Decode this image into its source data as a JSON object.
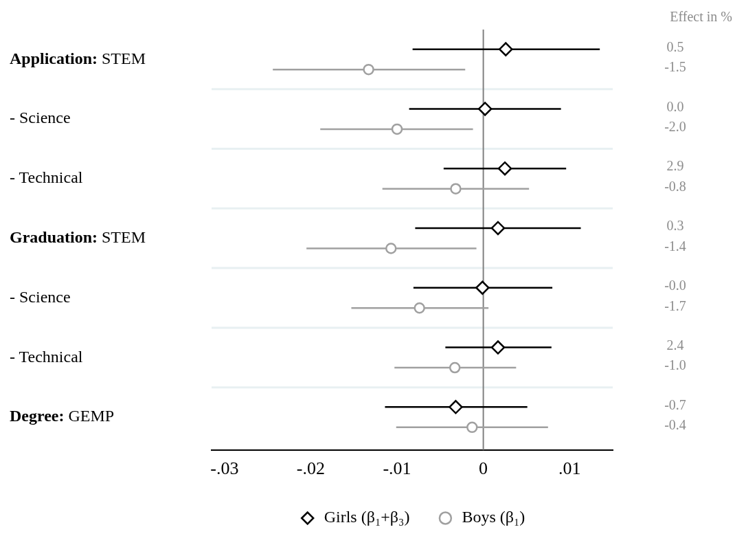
{
  "chart_data": {
    "type": "scatter",
    "orientation": "horizontal",
    "categories": [
      "Application: STEM",
      "- Science",
      "- Technical",
      "Graduation: STEM",
      "- Science",
      "- Technical",
      "Degree: GEMP"
    ],
    "series": [
      {
        "name": "Girls (β₁+β₃)",
        "color": "#000000",
        "marker": "diamond",
        "values": [
          0.0026,
          0.0002,
          0.0025,
          0.0017,
          -0.0001,
          0.0017,
          -0.0032
        ],
        "errors": [
          [
            -0.0082,
            0.0135
          ],
          [
            -0.0086,
            0.009
          ],
          [
            -0.0046,
            0.0096
          ],
          [
            -0.0079,
            0.0113
          ],
          [
            -0.0081,
            0.008
          ],
          [
            -0.0044,
            0.0079
          ],
          [
            -0.0114,
            0.0051
          ]
        ]
      },
      {
        "name": "Boys (β₁)",
        "color": "#a0a0a0",
        "marker": "circle",
        "values": [
          -0.0133,
          -0.01,
          -0.0032,
          -0.0107,
          -0.0074,
          -0.0033,
          -0.0013
        ],
        "errors": [
          [
            -0.0244,
            -0.0021
          ],
          [
            -0.0189,
            -0.0012
          ],
          [
            -0.0117,
            0.0053
          ],
          [
            -0.0205,
            -0.0008
          ],
          [
            -0.0153,
            0.0006
          ],
          [
            -0.0103,
            0.0038
          ],
          [
            -0.0101,
            0.0075
          ]
        ]
      }
    ],
    "xlim": [
      -0.0315,
      0.015
    ],
    "xticks": [
      {
        "value": -0.03,
        "label": "-.03"
      },
      {
        "value": -0.02,
        "label": "-.02"
      },
      {
        "value": -0.01,
        "label": "-.01"
      },
      0,
      {
        "value": 0.01,
        "label": ".01"
      }
    ],
    "ref_lines": [
      {
        "axis": "x",
        "value": 0,
        "color": "#808080"
      }
    ],
    "annotations": [
      "Effect in %",
      "0.5",
      "-1.5",
      "0.0",
      "-2.0",
      "2.9",
      "-0.8",
      "0.3",
      "-1.4",
      "-0.0",
      "-1.7",
      "2.4",
      "-1.0",
      "-0.7",
      "-0.4"
    ],
    "grid": "y",
    "legend": "bottom"
  }
}
